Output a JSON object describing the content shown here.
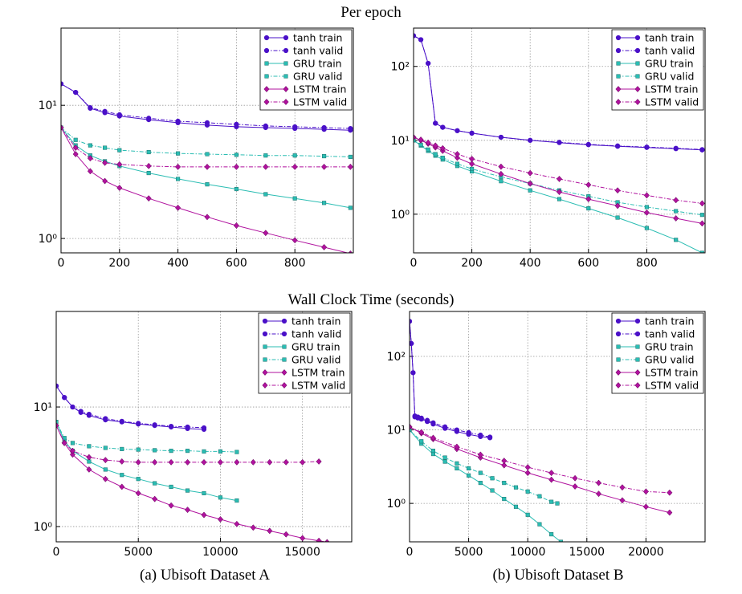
{
  "headings": [
    "Per epoch",
    "Wall Clock Time (seconds)"
  ],
  "captions": [
    "(a) Ubisoft Dataset A",
    "(b) Ubisoft Dataset B"
  ],
  "chart_data": [
    {
      "type": "line",
      "ylog": true,
      "grid": true,
      "legend": "upper right",
      "xlim": [
        0,
        1000
      ],
      "xticks": [
        0,
        200,
        400,
        600,
        800
      ],
      "ylim": [
        0.78,
        38
      ],
      "yticks": [
        {
          "value": 1,
          "label": "10⁰"
        },
        {
          "value": 10,
          "label": "10¹"
        }
      ],
      "series": [
        {
          "name": "tanh train",
          "color": "#4a10c8",
          "marker": "circle",
          "linestyle": "solid",
          "x": [
            0,
            50,
            100,
            150,
            200,
            300,
            400,
            500,
            600,
            700,
            800,
            900,
            990
          ],
          "values": [
            14.5,
            12.5,
            9.5,
            8.8,
            8.3,
            7.8,
            7.4,
            7.1,
            6.9,
            6.8,
            6.7,
            6.6,
            6.5
          ]
        },
        {
          "name": "tanh valid",
          "color": "#4a10c8",
          "marker": "circle",
          "linestyle": "dashdot",
          "x": [
            0,
            50,
            100,
            150,
            200,
            300,
            400,
            500,
            600,
            700,
            800,
            900,
            990
          ],
          "values": [
            14.5,
            12.5,
            9.6,
            9.0,
            8.5,
            8.0,
            7.6,
            7.4,
            7.2,
            7.0,
            6.9,
            6.8,
            6.7
          ]
        },
        {
          "name": "GRU train",
          "color": "#2bbdb3",
          "marker": "square",
          "linestyle": "solid",
          "x": [
            0,
            50,
            100,
            150,
            200,
            300,
            400,
            500,
            600,
            700,
            800,
            900,
            990
          ],
          "values": [
            6.8,
            5.0,
            4.2,
            3.8,
            3.5,
            3.1,
            2.8,
            2.55,
            2.35,
            2.15,
            2.0,
            1.85,
            1.7
          ]
        },
        {
          "name": "GRU valid",
          "color": "#2bbdb3",
          "marker": "square",
          "linestyle": "dashdot",
          "x": [
            0,
            50,
            100,
            150,
            200,
            300,
            400,
            500,
            600,
            700,
            800,
            900,
            990
          ],
          "values": [
            6.8,
            5.5,
            5.0,
            4.8,
            4.6,
            4.45,
            4.35,
            4.3,
            4.25,
            4.2,
            4.2,
            4.15,
            4.1
          ]
        },
        {
          "name": "LSTM train",
          "color": "#b0129e",
          "marker": "diamond",
          "linestyle": "solid",
          "x": [
            0,
            50,
            100,
            150,
            200,
            300,
            400,
            500,
            600,
            700,
            800,
            900,
            990
          ],
          "values": [
            6.8,
            4.3,
            3.2,
            2.7,
            2.4,
            2.0,
            1.7,
            1.45,
            1.25,
            1.1,
            0.97,
            0.86,
            0.77
          ]
        },
        {
          "name": "LSTM valid",
          "color": "#b0129e",
          "marker": "diamond",
          "linestyle": "dashdot",
          "x": [
            0,
            50,
            100,
            150,
            200,
            300,
            400,
            500,
            600,
            700,
            800,
            900,
            990
          ],
          "values": [
            6.8,
            4.8,
            4.0,
            3.7,
            3.6,
            3.5,
            3.45,
            3.45,
            3.45,
            3.45,
            3.45,
            3.45,
            3.45
          ]
        }
      ]
    },
    {
      "type": "line",
      "ylog": true,
      "grid": true,
      "legend": "upper right",
      "xlim": [
        0,
        1000
      ],
      "xticks": [
        0,
        200,
        400,
        600,
        800
      ],
      "ylim": [
        0.3,
        330
      ],
      "yticks": [
        {
          "value": 1,
          "label": "10⁰"
        },
        {
          "value": 10,
          "label": "10¹"
        },
        {
          "value": 100,
          "label": "10²"
        }
      ],
      "series": [
        {
          "name": "tanh train",
          "color": "#4a10c8",
          "marker": "circle",
          "linestyle": "solid",
          "x": [
            0,
            25,
            50,
            75,
            100,
            150,
            200,
            300,
            400,
            500,
            600,
            700,
            800,
            900,
            990
          ],
          "values": [
            260,
            230,
            110,
            17,
            15,
            13.5,
            12.5,
            11,
            10,
            9.3,
            8.7,
            8.3,
            8,
            7.7,
            7.4
          ]
        },
        {
          "name": "tanh valid",
          "color": "#4a10c8",
          "marker": "circle",
          "linestyle": "dashdot",
          "x": [
            0,
            25,
            50,
            75,
            100,
            150,
            200,
            300,
            400,
            500,
            600,
            700,
            800,
            900,
            990
          ],
          "values": [
            260,
            230,
            110,
            17,
            15,
            13.5,
            12.5,
            11,
            10,
            9.4,
            8.8,
            8.4,
            8.1,
            7.8,
            7.5
          ]
        },
        {
          "name": "GRU train",
          "color": "#2bbdb3",
          "marker": "square",
          "linestyle": "solid",
          "x": [
            0,
            25,
            50,
            75,
            100,
            150,
            200,
            300,
            400,
            500,
            600,
            700,
            800,
            900,
            990
          ],
          "values": [
            10,
            8.5,
            7.2,
            6.2,
            5.5,
            4.5,
            3.8,
            2.8,
            2.1,
            1.6,
            1.2,
            0.9,
            0.65,
            0.45,
            0.3
          ]
        },
        {
          "name": "GRU valid",
          "color": "#2bbdb3",
          "marker": "square",
          "linestyle": "dashdot",
          "x": [
            0,
            25,
            50,
            75,
            100,
            150,
            200,
            300,
            400,
            500,
            600,
            700,
            800,
            900,
            990
          ],
          "values": [
            10,
            8.7,
            7.5,
            6.5,
            5.8,
            4.8,
            4.1,
            3.2,
            2.6,
            2.1,
            1.75,
            1.45,
            1.25,
            1.1,
            0.98
          ]
        },
        {
          "name": "LSTM train",
          "color": "#b0129e",
          "marker": "diamond",
          "linestyle": "solid",
          "x": [
            0,
            25,
            50,
            75,
            100,
            150,
            200,
            300,
            400,
            500,
            600,
            700,
            800,
            900,
            990
          ],
          "values": [
            11,
            10,
            9,
            8,
            7.2,
            5.8,
            4.8,
            3.5,
            2.6,
            2.0,
            1.6,
            1.3,
            1.05,
            0.88,
            0.75
          ]
        },
        {
          "name": "LSTM valid",
          "color": "#b0129e",
          "marker": "diamond",
          "linestyle": "dashdot",
          "x": [
            0,
            25,
            50,
            75,
            100,
            150,
            200,
            300,
            400,
            500,
            600,
            700,
            800,
            900,
            990
          ],
          "values": [
            11,
            10.2,
            9.3,
            8.5,
            7.8,
            6.5,
            5.6,
            4.4,
            3.6,
            3.0,
            2.5,
            2.1,
            1.8,
            1.55,
            1.4
          ]
        }
      ]
    },
    {
      "type": "line",
      "ylog": true,
      "grid": true,
      "legend": "upper right",
      "xlim": [
        0,
        18000
      ],
      "xticks": [
        0,
        5000,
        10000,
        15000
      ],
      "ylim": [
        0.745,
        63
      ],
      "yticks": [
        {
          "value": 1,
          "label": "10⁰"
        },
        {
          "value": 10,
          "label": "10¹"
        }
      ],
      "series": [
        {
          "name": "tanh train",
          "color": "#4a10c8",
          "marker": "circle",
          "linestyle": "solid",
          "x": [
            0,
            500,
            1000,
            1500,
            2000,
            3000,
            4000,
            5000,
            6000,
            7000,
            8000,
            9000
          ],
          "values": [
            15,
            12,
            10,
            9,
            8.5,
            7.8,
            7.5,
            7.2,
            7.0,
            6.8,
            6.6,
            6.5
          ]
        },
        {
          "name": "tanh valid",
          "color": "#4a10c8",
          "marker": "circle",
          "linestyle": "dashdot",
          "x": [
            0,
            500,
            1000,
            1500,
            2000,
            3000,
            4000,
            5000,
            6000,
            7000,
            8000,
            9000
          ],
          "values": [
            15,
            12,
            10,
            9.2,
            8.7,
            8.0,
            7.6,
            7.3,
            7.1,
            6.9,
            6.8,
            6.7
          ]
        },
        {
          "name": "GRU train",
          "color": "#2bbdb3",
          "marker": "square",
          "linestyle": "solid",
          "x": [
            0,
            500,
            1000,
            2000,
            3000,
            4000,
            5000,
            6000,
            7000,
            8000,
            9000,
            10000,
            11000
          ],
          "values": [
            7.5,
            5.2,
            4.3,
            3.5,
            3.0,
            2.7,
            2.5,
            2.3,
            2.15,
            2.0,
            1.9,
            1.75,
            1.65
          ]
        },
        {
          "name": "GRU valid",
          "color": "#2bbdb3",
          "marker": "square",
          "linestyle": "dashdot",
          "x": [
            0,
            500,
            1000,
            2000,
            3000,
            4000,
            5000,
            6000,
            7000,
            8000,
            9000,
            10000,
            11000
          ],
          "values": [
            7.5,
            5.5,
            5.0,
            4.7,
            4.55,
            4.45,
            4.4,
            4.35,
            4.3,
            4.3,
            4.25,
            4.25,
            4.2
          ]
        },
        {
          "name": "LSTM train",
          "color": "#b0129e",
          "marker": "diamond",
          "linestyle": "solid",
          "x": [
            0,
            500,
            1000,
            2000,
            3000,
            4000,
            5000,
            6000,
            7000,
            8000,
            9000,
            10000,
            11000,
            12000,
            13000,
            14000,
            15000,
            16000,
            16500
          ],
          "values": [
            7,
            5,
            4,
            3,
            2.5,
            2.15,
            1.9,
            1.7,
            1.5,
            1.38,
            1.25,
            1.15,
            1.05,
            0.98,
            0.92,
            0.86,
            0.8,
            0.76,
            0.74
          ]
        },
        {
          "name": "LSTM valid",
          "color": "#b0129e",
          "marker": "diamond",
          "linestyle": "dashdot",
          "x": [
            0,
            500,
            1000,
            2000,
            3000,
            4000,
            5000,
            6000,
            7000,
            8000,
            9000,
            10000,
            11000,
            12000,
            13000,
            14000,
            15000,
            16000
          ],
          "values": [
            7,
            5,
            4.3,
            3.8,
            3.6,
            3.5,
            3.45,
            3.45,
            3.45,
            3.45,
            3.45,
            3.45,
            3.45,
            3.45,
            3.45,
            3.45,
            3.45,
            3.5
          ]
        }
      ]
    },
    {
      "type": "line",
      "ylog": true,
      "grid": true,
      "legend": "upper right",
      "xlim": [
        0,
        25000
      ],
      "xticks": [
        0,
        5000,
        10000,
        15000,
        20000
      ],
      "ylim": [
        0.3,
        409
      ],
      "yticks": [
        {
          "value": 1,
          "label": "10⁰"
        },
        {
          "value": 10,
          "label": "10¹"
        },
        {
          "value": 100,
          "label": "10²"
        }
      ],
      "series": [
        {
          "name": "tanh train",
          "color": "#4a10c8",
          "marker": "circle",
          "linestyle": "solid",
          "x": [
            0,
            150,
            300,
            450,
            700,
            1000,
            1500,
            2000,
            3000,
            4000,
            5000,
            6000,
            6800
          ],
          "values": [
            300,
            150,
            60,
            15,
            14.5,
            14,
            13,
            12,
            10.5,
            9.5,
            8.7,
            8.1,
            7.8
          ]
        },
        {
          "name": "tanh valid",
          "color": "#4a10c8",
          "marker": "circle",
          "linestyle": "dashdot",
          "x": [
            0,
            150,
            300,
            450,
            700,
            1000,
            1500,
            2000,
            3000,
            4000,
            5000,
            6000,
            6800
          ],
          "values": [
            300,
            150,
            60,
            15.5,
            15,
            14.5,
            13.5,
            12.5,
            11,
            10,
            9.2,
            8.5,
            8
          ]
        },
        {
          "name": "GRU train",
          "color": "#2bbdb3",
          "marker": "square",
          "linestyle": "solid",
          "x": [
            0,
            1000,
            2000,
            3000,
            4000,
            5000,
            6000,
            7000,
            8000,
            9000,
            10000,
            11000,
            12000,
            12800
          ],
          "values": [
            10,
            6.5,
            4.7,
            3.7,
            3.0,
            2.4,
            1.9,
            1.5,
            1.15,
            0.9,
            0.7,
            0.52,
            0.38,
            0.3
          ]
        },
        {
          "name": "GRU valid",
          "color": "#2bbdb3",
          "marker": "square",
          "linestyle": "dashdot",
          "x": [
            0,
            1000,
            2000,
            3000,
            4000,
            5000,
            6000,
            7000,
            8000,
            9000,
            10000,
            11000,
            12000,
            12500
          ],
          "values": [
            10,
            7,
            5.2,
            4.2,
            3.5,
            3.0,
            2.6,
            2.2,
            1.9,
            1.65,
            1.45,
            1.25,
            1.05,
            1.0
          ]
        },
        {
          "name": "LSTM train",
          "color": "#b0129e",
          "marker": "diamond",
          "linestyle": "solid",
          "x": [
            0,
            1000,
            2000,
            4000,
            6000,
            8000,
            10000,
            12000,
            14000,
            16000,
            18000,
            20000,
            22000
          ],
          "values": [
            11,
            9,
            7.5,
            5.5,
            4.2,
            3.3,
            2.6,
            2.1,
            1.7,
            1.35,
            1.1,
            0.9,
            0.75
          ]
        },
        {
          "name": "LSTM valid",
          "color": "#b0129e",
          "marker": "diamond",
          "linestyle": "dashdot",
          "x": [
            0,
            1000,
            2000,
            4000,
            6000,
            8000,
            10000,
            12000,
            14000,
            16000,
            18000,
            20000,
            22000
          ],
          "values": [
            11,
            9.3,
            7.8,
            5.9,
            4.6,
            3.8,
            3.1,
            2.6,
            2.2,
            1.9,
            1.65,
            1.45,
            1.4
          ]
        }
      ]
    }
  ]
}
